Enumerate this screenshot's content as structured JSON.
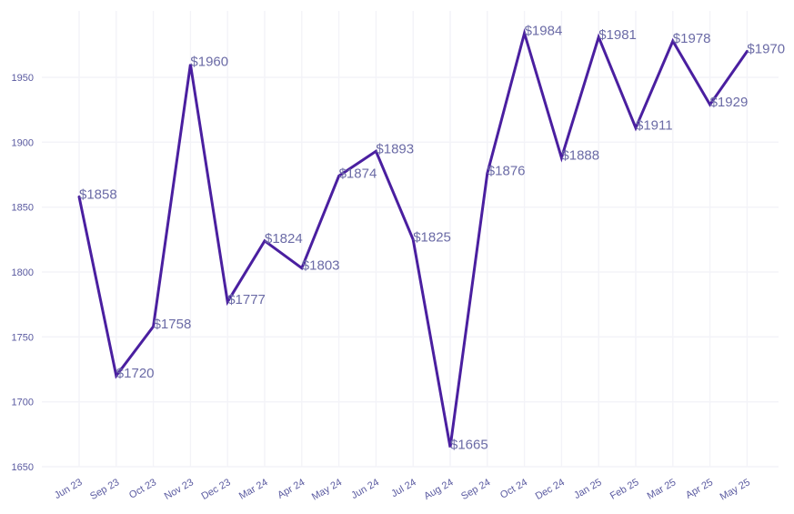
{
  "chart_data": {
    "type": "line",
    "title": "",
    "xlabel": "",
    "ylabel": "",
    "ylim": [
      1650,
      1990
    ],
    "yticks": [
      1650,
      1700,
      1750,
      1800,
      1850,
      1900,
      1950
    ],
    "grid": true,
    "legend": "none",
    "line_color": "#4a1fa0",
    "categories": [
      "Jun 23",
      "Sep 23",
      "Oct 23",
      "Nov 23",
      "Dec 23",
      "Mar 24",
      "Apr 24",
      "May 24",
      "Jun 24",
      "Jul 24",
      "Aug 24",
      "Sep 24",
      "Oct 24",
      "Dec 24",
      "Jan 25",
      "Feb 25",
      "Mar 25",
      "Apr 25",
      "May 25"
    ],
    "values": [
      1858,
      1720,
      1758,
      1960,
      1777,
      1824,
      1803,
      1874,
      1893,
      1825,
      1665,
      1876,
      1984,
      1888,
      1981,
      1911,
      1978,
      1929,
      1970
    ],
    "data_labels": [
      "$1858",
      "$1720",
      "$1758",
      "$1960",
      "$1777",
      "$1824",
      "$1803",
      "$1874",
      "$1893",
      "$1825",
      "$1665",
      "$1876",
      "$1984",
      "$1888",
      "$1981",
      "$1911",
      "$1978",
      "$1929",
      "$1970"
    ]
  }
}
